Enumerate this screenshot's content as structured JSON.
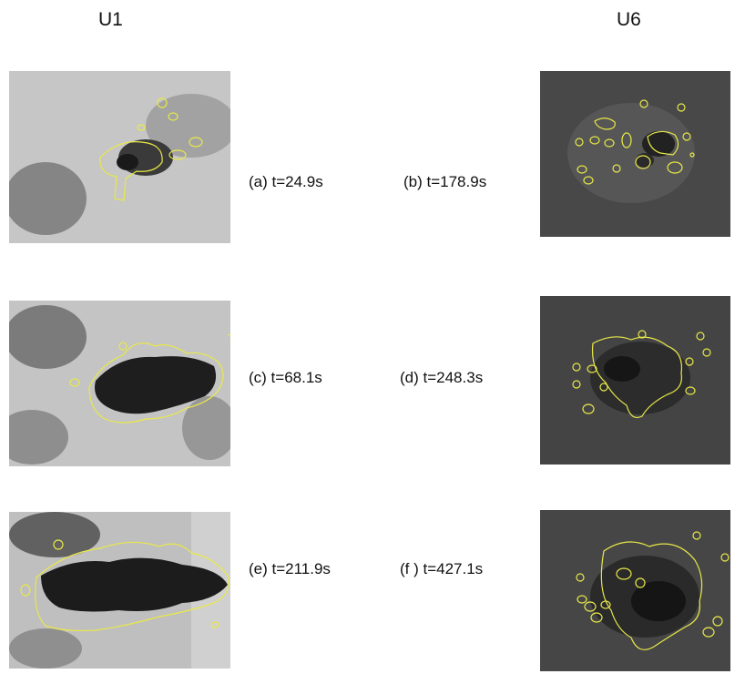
{
  "figure": {
    "left_column_title": "U1",
    "right_column_title": "U6",
    "captions": {
      "a": "(a)  t=24.9s",
      "b": "(b) t=178.9s",
      "c": "(c) t=68.1s",
      "d": "(d)  t=248.3s",
      "e": "(e) t=211.9s",
      "f": "(f ) t=427.1s"
    },
    "colors": {
      "contour": "#e8e84a",
      "left_background": "#c8c8c8",
      "right_background": "#474747",
      "dark_region": "#161616"
    }
  }
}
